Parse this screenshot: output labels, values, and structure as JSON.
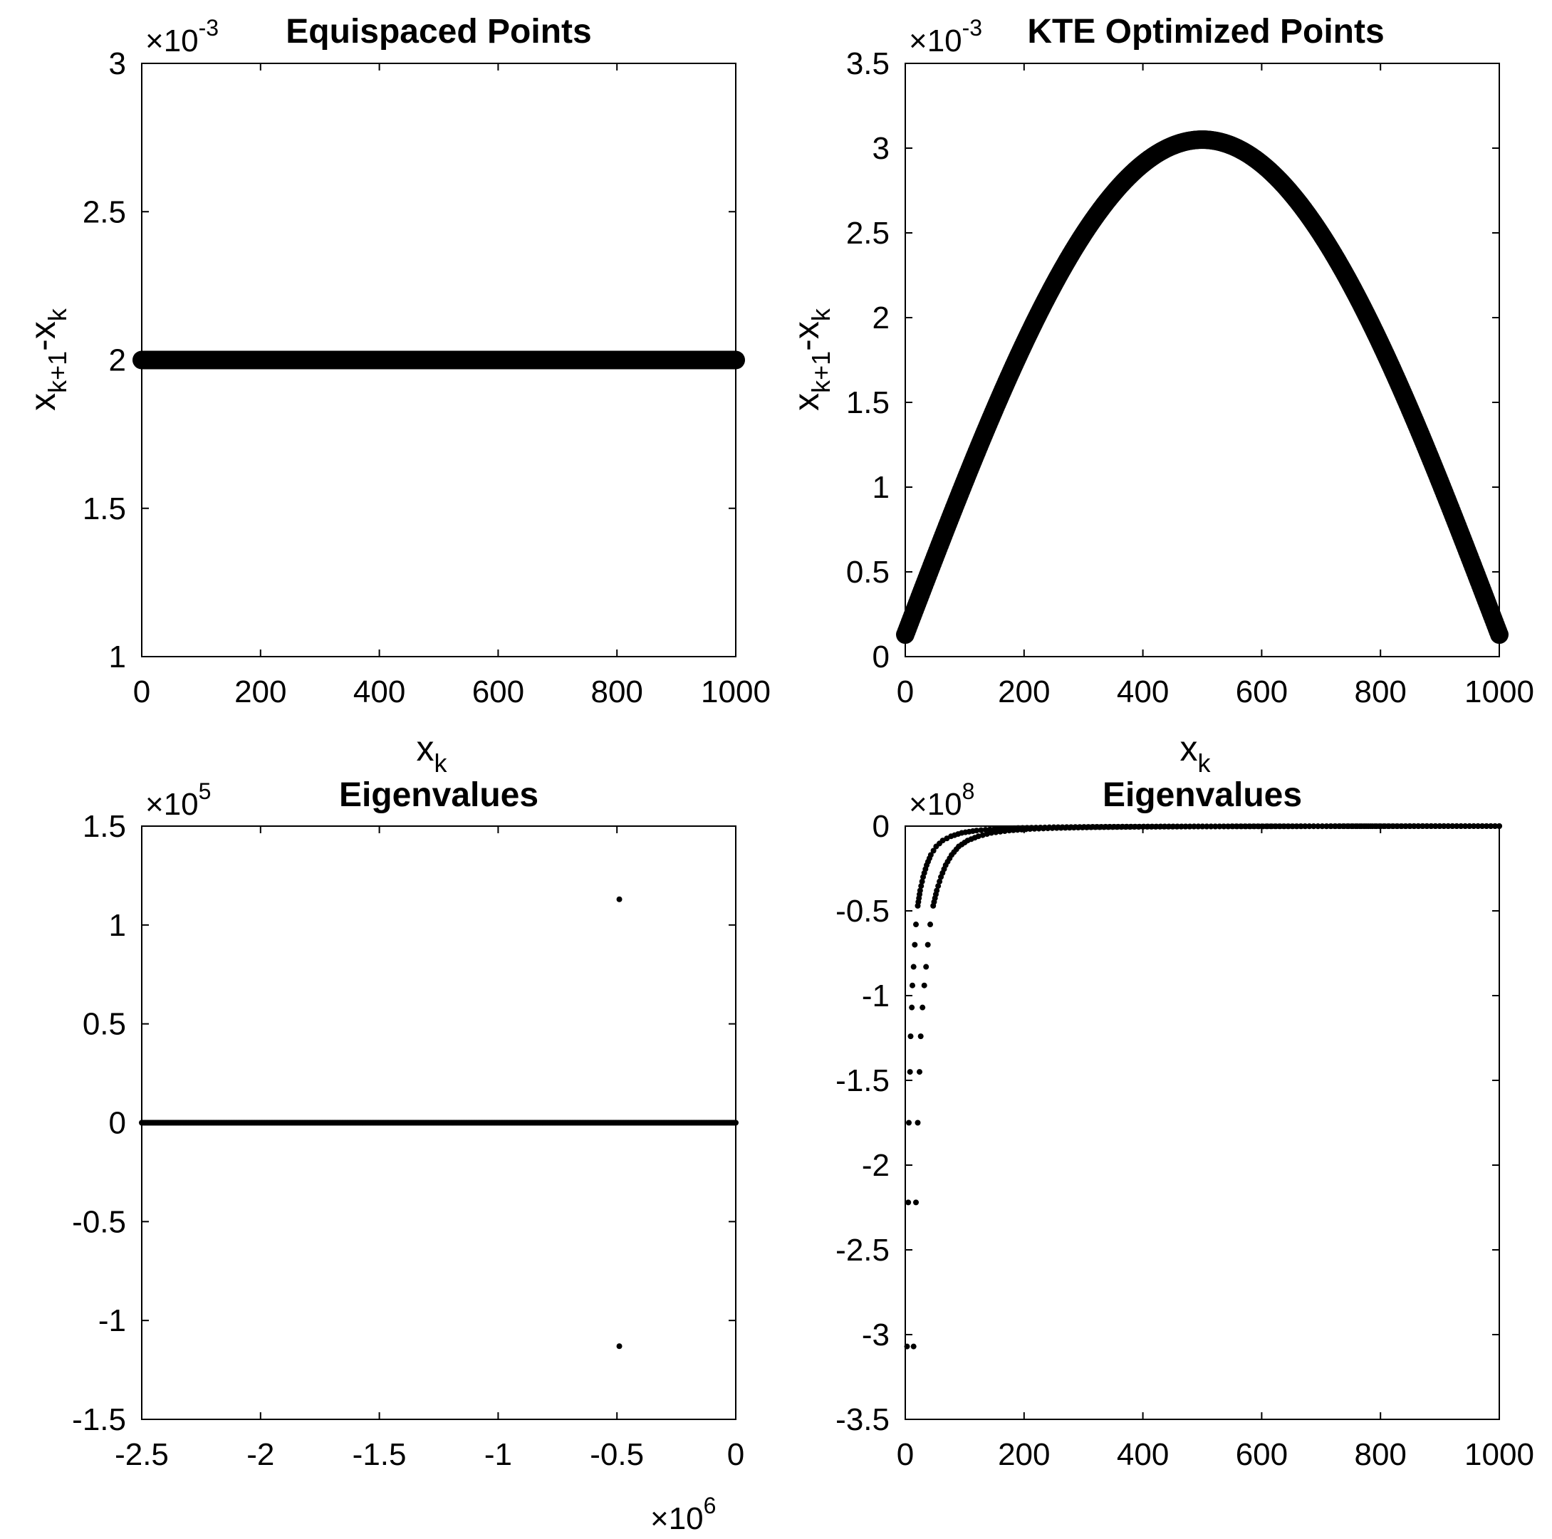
{
  "chart_data": [
    {
      "type": "scatter",
      "title": "Equispaced Points",
      "xlabel": "x",
      "xlabel_sub": "k",
      "ylabel": "x",
      "ylabel_sub": "k+1",
      "ylabel_tail": "-x",
      "ylabel_tail_sub": "k",
      "xlim": [
        0,
        1000
      ],
      "ylim": [
        1,
        3
      ],
      "xticks": [
        0,
        200,
        400,
        600,
        800,
        1000
      ],
      "xtick_labels": [
        "0",
        "200",
        "400",
        "600",
        "800",
        "1000"
      ],
      "yticks": [
        1,
        1.5,
        2,
        2.5,
        3
      ],
      "ytick_labels": [
        "1",
        "1.5",
        "2",
        "2.5",
        "3"
      ],
      "y_multiplier": {
        "base": "×10",
        "exp": "-3"
      },
      "grid": false,
      "marker": "filled-circle-large",
      "series": [
        {
          "curve": "constant",
          "value": 2,
          "x_start": 0,
          "x_end": 1000,
          "n_points": 500
        }
      ]
    },
    {
      "type": "scatter",
      "title": "KTE Optimized Points",
      "xlabel": "x",
      "xlabel_sub": "k",
      "ylabel": "x",
      "ylabel_sub": "k+1",
      "ylabel_tail": "-x",
      "ylabel_tail_sub": "k",
      "xlim": [
        0,
        1000
      ],
      "ylim": [
        0,
        3.5
      ],
      "xticks": [
        0,
        200,
        400,
        600,
        800,
        1000
      ],
      "xtick_labels": [
        "0",
        "200",
        "400",
        "600",
        "800",
        "1000"
      ],
      "yticks": [
        0,
        0.5,
        1,
        1.5,
        2,
        2.5,
        3,
        3.5
      ],
      "ytick_labels": [
        "0",
        "0.5",
        "1",
        "1.5",
        "2",
        "2.5",
        "3",
        "3.5"
      ],
      "y_multiplier": {
        "base": "×10",
        "exp": "-3"
      },
      "grid": false,
      "marker": "filled-circle-large",
      "series": [
        {
          "curve": "arch",
          "x_start": 0,
          "x_end": 1000,
          "y_end": 0.13,
          "y_peak": 3.05,
          "peak_x": 500,
          "n_points": 500
        }
      ]
    },
    {
      "type": "scatter",
      "title": "Eigenvalues",
      "xlim": [
        -2500000,
        0
      ],
      "ylim": [
        -150000,
        150000
      ],
      "xticks": [
        -2500000,
        -2000000,
        -1500000,
        -1000000,
        -500000,
        0
      ],
      "xtick_labels": [
        "-2.5",
        "-2",
        "-1.5",
        "-1",
        "-0.5",
        "0"
      ],
      "yticks": [
        -150000,
        -100000,
        -50000,
        0,
        50000,
        100000,
        150000
      ],
      "ytick_labels": [
        "-1.5",
        "-1",
        "-0.5",
        "0",
        "0.5",
        "1",
        "1.5"
      ],
      "x_multiplier": {
        "base": "×10",
        "exp": "6"
      },
      "y_multiplier": {
        "base": "×10",
        "exp": "5"
      },
      "grid": false,
      "marker": "dot-small",
      "series": [
        {
          "curve": "real-axis",
          "y": 0,
          "x_start": -2500000,
          "x_end": 0,
          "n_points": 600
        },
        {
          "curve": "points",
          "points": [
            [
              -490000,
              113000
            ],
            [
              -490000,
              -113000
            ]
          ]
        }
      ]
    },
    {
      "type": "scatter",
      "title": "Eigenvalues",
      "xlim": [
        0,
        1000
      ],
      "ylim": [
        -350000000,
        0
      ],
      "xticks": [
        0,
        200,
        400,
        600,
        800,
        1000
      ],
      "xtick_labels": [
        "0",
        "200",
        "400",
        "600",
        "800",
        "1000"
      ],
      "yticks": [
        -350000000,
        -300000000,
        -250000000,
        -200000000,
        -150000000,
        -100000000,
        -50000000,
        0
      ],
      "ytick_labels": [
        "-3.5",
        "-3",
        "-2.5",
        "-2",
        "-1.5",
        "-1",
        "-0.5",
        "0"
      ],
      "y_multiplier": {
        "base": "×10",
        "exp": "8"
      },
      "grid": false,
      "marker": "dot-small",
      "series": [
        {
          "curve": "branch",
          "points": [
            [
              3,
              -307000000
            ],
            [
              5,
              -222000000
            ],
            [
              6,
              -175000000
            ],
            [
              8,
              -145000000
            ],
            [
              9,
              -124000000
            ],
            [
              11,
              -107000000
            ],
            [
              12,
              -94000000
            ],
            [
              14,
              -83000000
            ],
            [
              16,
              -70000000
            ],
            [
              18,
              -58000000
            ],
            [
              21,
              -47000000
            ],
            [
              25,
              -38000000
            ],
            [
              30,
              -30000000
            ],
            [
              36,
              -23000000
            ],
            [
              43,
              -17000000
            ],
            [
              52,
              -12000000
            ],
            [
              63,
              -8500000
            ],
            [
              77,
              -6000000
            ],
            [
              95,
              -4000000
            ],
            [
              120,
              -2600000
            ],
            [
              150,
              -1700000
            ],
            [
              190,
              -1100000
            ],
            [
              250,
              -650000
            ],
            [
              330,
              -400000
            ],
            [
              430,
              -230000
            ],
            [
              550,
              -130000
            ],
            [
              680,
              -70000
            ],
            [
              820,
              -30000
            ],
            [
              1000,
              0
            ]
          ]
        },
        {
          "curve": "branch",
          "points": [
            [
              14,
              -307000000
            ],
            [
              18,
              -222000000
            ],
            [
              21,
              -175000000
            ],
            [
              24,
              -145000000
            ],
            [
              26,
              -124000000
            ],
            [
              29,
              -107000000
            ],
            [
              32,
              -94000000
            ],
            [
              35,
              -83000000
            ],
            [
              38,
              -70000000
            ],
            [
              42,
              -58000000
            ],
            [
              47,
              -47000000
            ],
            [
              53,
              -38000000
            ],
            [
              60,
              -30000000
            ],
            [
              68,
              -23000000
            ],
            [
              78,
              -17000000
            ],
            [
              90,
              -12000000
            ],
            [
              105,
              -8500000
            ],
            [
              123,
              -6000000
            ],
            [
              145,
              -4000000
            ],
            [
              175,
              -2600000
            ],
            [
              210,
              -1700000
            ],
            [
              255,
              -1100000
            ],
            [
              320,
              -650000
            ],
            [
              400,
              -400000
            ],
            [
              500,
              -230000
            ],
            [
              610,
              -130000
            ],
            [
              730,
              -70000
            ],
            [
              850,
              -30000
            ],
            [
              1000,
              0
            ]
          ]
        }
      ]
    }
  ]
}
